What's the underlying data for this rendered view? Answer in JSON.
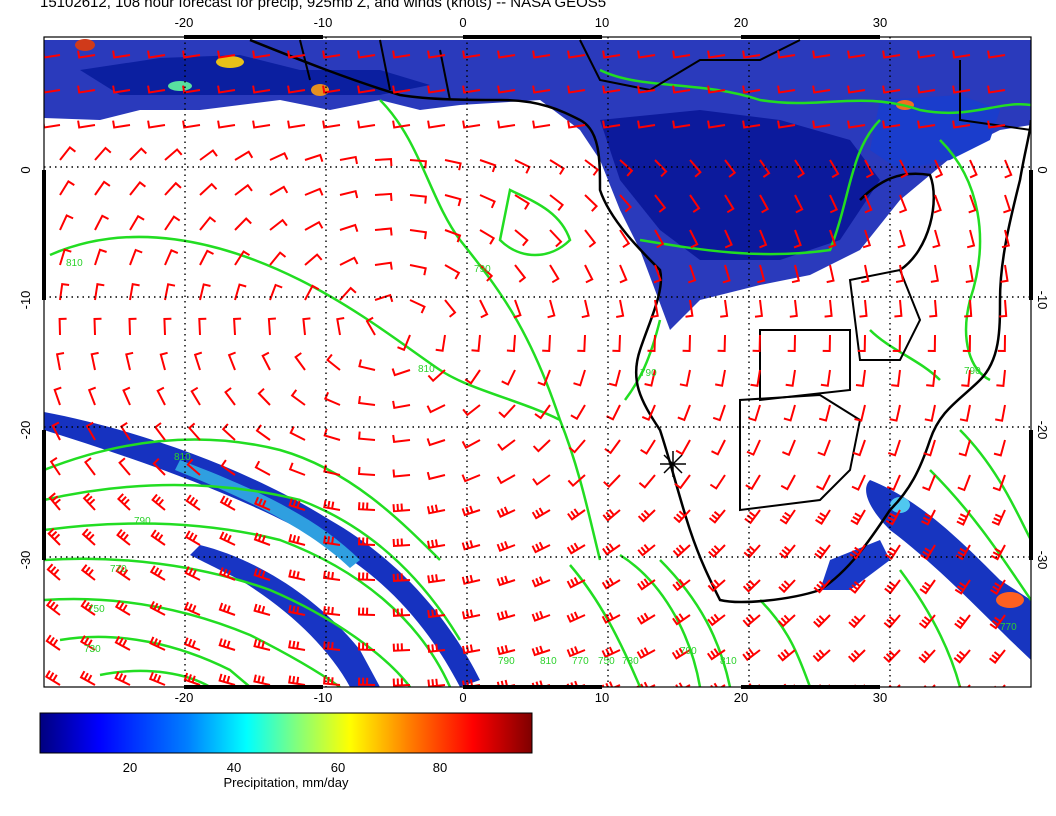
{
  "title": "15102612, 108 hour forecast for precip, 925mb Z, and winds (knots) -- NASA GEOS5",
  "map": {
    "lon_range": [
      -30,
      40
    ],
    "lat_range": [
      -40,
      10
    ],
    "lon_ticks_top": [
      "-20",
      "-10",
      "0",
      "10",
      "20",
      "30"
    ],
    "lon_ticks_bottom": [
      "-20",
      "-10",
      "0",
      "10",
      "20",
      "30"
    ],
    "lat_ticks_left": [
      "0",
      "-10",
      "-20",
      "-30"
    ],
    "lat_ticks_right": [
      "0",
      "-10",
      "-20",
      "-30"
    ],
    "grid_spacing_deg": 10,
    "grid_style": "dotted",
    "contour_color": "#22dd22",
    "wind_barb_color": "#ff0000",
    "coast_color": "#000000",
    "contour_labels": [
      "810",
      "790",
      "810",
      "790",
      "810",
      "790",
      "770",
      "750",
      "730",
      "790",
      "810",
      "770",
      "750",
      "730",
      "790",
      "810",
      "770",
      "790"
    ]
  },
  "colorbar": {
    "label": "Precipitation, mm/day",
    "ticks": [
      "20",
      "40",
      "60",
      "80"
    ],
    "colors": [
      "#00007f",
      "#0000ff",
      "#007fff",
      "#00ffff",
      "#7fff7f",
      "#ffff00",
      "#ff7f00",
      "#ff0000",
      "#7f0000"
    ]
  }
}
